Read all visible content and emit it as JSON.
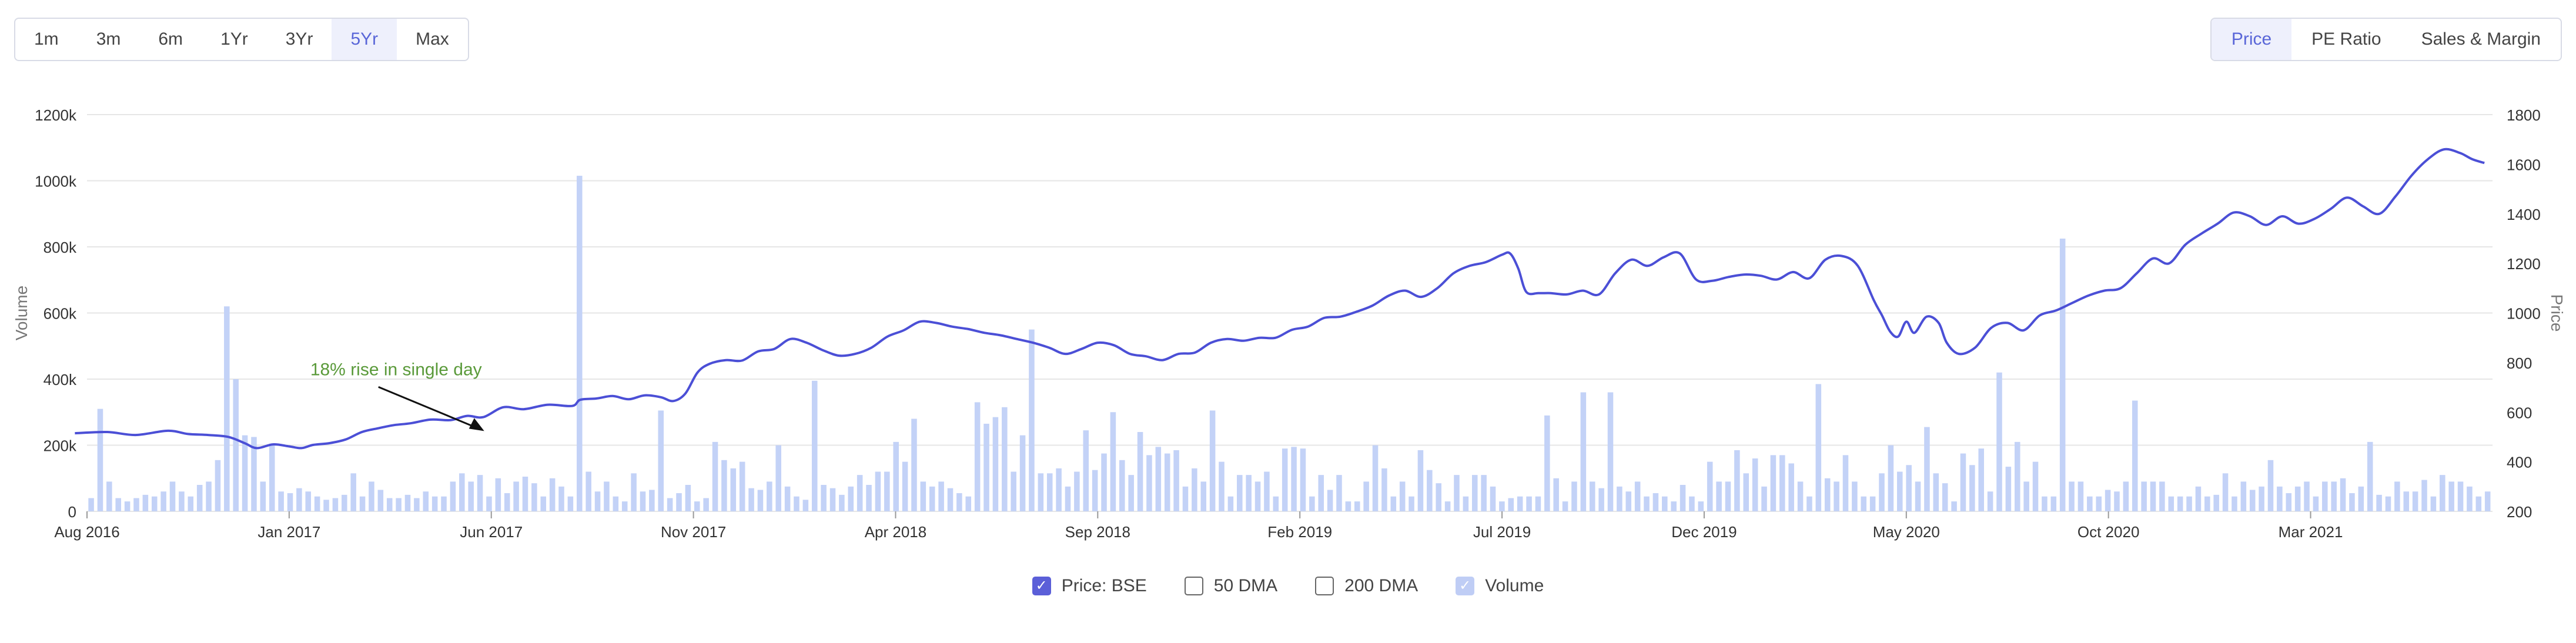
{
  "range_buttons": [
    {
      "label": "1m"
    },
    {
      "label": "3m"
    },
    {
      "label": "6m"
    },
    {
      "label": "1Yr"
    },
    {
      "label": "3Yr"
    },
    {
      "label": "5Yr"
    },
    {
      "label": "Max"
    }
  ],
  "range_active": "5Yr",
  "view_buttons": [
    {
      "label": "Price"
    },
    {
      "label": "PE Ratio"
    },
    {
      "label": "Sales & Margin"
    }
  ],
  "view_active": "Price",
  "legend": {
    "price": "Price: BSE",
    "dma50": "50 DMA",
    "dma200": "200 DMA",
    "volume": "Volume"
  },
  "colors": {
    "price_line": "#4b4fd6",
    "volume_bar": "#c3d2f7",
    "annotation": "#5a9a3a",
    "grid": "#e6e6e6"
  },
  "chart_data": {
    "type": "line",
    "ylabel_left": "Volume",
    "ylabel_right": "Price",
    "yleft_ticks": [
      "0",
      "200k",
      "400k",
      "600k",
      "800k",
      "1000k",
      "1200k"
    ],
    "yright_ticks": [
      "200",
      "400",
      "600",
      "800",
      "1000",
      "1200",
      "1400",
      "1600",
      "1800"
    ],
    "yleft_range": [
      0,
      1200000
    ],
    "yright_range": [
      200,
      1800
    ],
    "x_range": [
      0,
      59.5
    ],
    "x_ticks": [
      {
        "label": "Aug 2016",
        "x": 0
      },
      {
        "label": "Jan 2017",
        "x": 5
      },
      {
        "label": "Jun 2017",
        "x": 10
      },
      {
        "label": "Nov 2017",
        "x": 15
      },
      {
        "label": "Apr 2018",
        "x": 20
      },
      {
        "label": "Sep 2018",
        "x": 25
      },
      {
        "label": "Feb 2019",
        "x": 30
      },
      {
        "label": "Jul 2019",
        "x": 35
      },
      {
        "label": "Dec 2019",
        "x": 40
      },
      {
        "label": "May 2020",
        "x": 45
      },
      {
        "label": "Oct 2020",
        "x": 50
      },
      {
        "label": "Mar 2021",
        "x": 55
      }
    ],
    "annotation": {
      "text": "18% rise in single day",
      "x": 10,
      "y": 505
    },
    "price_series": {
      "name": "Price: BSE",
      "points": [
        [
          -0.3,
          515
        ],
        [
          0.5,
          520
        ],
        [
          1.2,
          508
        ],
        [
          2,
          525
        ],
        [
          2.5,
          512
        ],
        [
          3,
          508
        ],
        [
          3.5,
          500
        ],
        [
          3.9,
          475
        ],
        [
          4.2,
          455
        ],
        [
          4.6,
          470
        ],
        [
          5,
          462
        ],
        [
          5.3,
          455
        ],
        [
          5.6,
          468
        ],
        [
          6,
          475
        ],
        [
          6.4,
          490
        ],
        [
          6.8,
          520
        ],
        [
          7.2,
          535
        ],
        [
          7.6,
          548
        ],
        [
          8,
          555
        ],
        [
          8.5,
          570
        ],
        [
          9,
          568
        ],
        [
          9.4,
          585
        ],
        [
          9.8,
          580
        ],
        [
          10.3,
          620
        ],
        [
          10.8,
          612
        ],
        [
          11.4,
          630
        ],
        [
          12,
          625
        ],
        [
          12.2,
          650
        ],
        [
          12.6,
          655
        ],
        [
          13,
          665
        ],
        [
          13.4,
          652
        ],
        [
          13.8,
          668
        ],
        [
          14.2,
          660
        ],
        [
          14.5,
          645
        ],
        [
          14.8,
          675
        ],
        [
          15.1,
          760
        ],
        [
          15.4,
          795
        ],
        [
          15.8,
          810
        ],
        [
          16.2,
          808
        ],
        [
          16.6,
          845
        ],
        [
          17,
          855
        ],
        [
          17.4,
          895
        ],
        [
          17.8,
          880
        ],
        [
          18.2,
          850
        ],
        [
          18.6,
          828
        ],
        [
          19,
          835
        ],
        [
          19.4,
          860
        ],
        [
          19.8,
          905
        ],
        [
          20.2,
          930
        ],
        [
          20.6,
          965
        ],
        [
          21,
          960
        ],
        [
          21.4,
          945
        ],
        [
          21.8,
          935
        ],
        [
          22.2,
          920
        ],
        [
          22.6,
          910
        ],
        [
          23,
          895
        ],
        [
          23.4,
          880
        ],
        [
          23.8,
          860
        ],
        [
          24.2,
          835
        ],
        [
          24.6,
          855
        ],
        [
          25,
          880
        ],
        [
          25.4,
          870
        ],
        [
          25.8,
          835
        ],
        [
          26.2,
          825
        ],
        [
          26.6,
          810
        ],
        [
          27,
          835
        ],
        [
          27.4,
          840
        ],
        [
          27.8,
          880
        ],
        [
          28.2,
          895
        ],
        [
          28.6,
          888
        ],
        [
          29,
          900
        ],
        [
          29.4,
          900
        ],
        [
          29.8,
          932
        ],
        [
          30.2,
          945
        ],
        [
          30.6,
          980
        ],
        [
          31,
          985
        ],
        [
          31.4,
          1005
        ],
        [
          31.8,
          1030
        ],
        [
          32.2,
          1070
        ],
        [
          32.6,
          1090
        ],
        [
          33,
          1065
        ],
        [
          33.4,
          1100
        ],
        [
          33.8,
          1160
        ],
        [
          34.2,
          1190
        ],
        [
          34.6,
          1205
        ],
        [
          35,
          1235
        ],
        [
          35.2,
          1240
        ],
        [
          35.4,
          1180
        ],
        [
          35.6,
          1085
        ],
        [
          35.9,
          1080
        ],
        [
          36.2,
          1080
        ],
        [
          36.6,
          1075
        ],
        [
          37,
          1090
        ],
        [
          37.4,
          1075
        ],
        [
          37.8,
          1160
        ],
        [
          38.2,
          1215
        ],
        [
          38.6,
          1190
        ],
        [
          39,
          1225
        ],
        [
          39.4,
          1240
        ],
        [
          39.8,
          1135
        ],
        [
          40.2,
          1130
        ],
        [
          40.6,
          1145
        ],
        [
          41,
          1155
        ],
        [
          41.4,
          1150
        ],
        [
          41.8,
          1135
        ],
        [
          42.2,
          1165
        ],
        [
          42.6,
          1140
        ],
        [
          43,
          1215
        ],
        [
          43.4,
          1230
        ],
        [
          43.8,
          1190
        ],
        [
          44.2,
          1050
        ],
        [
          44.4,
          990
        ],
        [
          44.6,
          925
        ],
        [
          44.8,
          905
        ],
        [
          45,
          965
        ],
        [
          45.2,
          920
        ],
        [
          45.5,
          985
        ],
        [
          45.8,
          960
        ],
        [
          46,
          880
        ],
        [
          46.3,
          835
        ],
        [
          46.7,
          860
        ],
        [
          47.1,
          940
        ],
        [
          47.5,
          960
        ],
        [
          47.9,
          930
        ],
        [
          48.3,
          990
        ],
        [
          48.7,
          1010
        ],
        [
          49.1,
          1040
        ],
        [
          49.5,
          1070
        ],
        [
          49.9,
          1090
        ],
        [
          50.3,
          1100
        ],
        [
          50.7,
          1160
        ],
        [
          51.1,
          1220
        ],
        [
          51.5,
          1200
        ],
        [
          51.9,
          1275
        ],
        [
          52.3,
          1320
        ],
        [
          52.7,
          1360
        ],
        [
          53.1,
          1405
        ],
        [
          53.5,
          1390
        ],
        [
          53.9,
          1355
        ],
        [
          54.3,
          1390
        ],
        [
          54.7,
          1360
        ],
        [
          55.1,
          1380
        ],
        [
          55.5,
          1420
        ],
        [
          55.9,
          1465
        ],
        [
          56.3,
          1430
        ],
        [
          56.7,
          1400
        ],
        [
          57.1,
          1470
        ],
        [
          57.5,
          1555
        ],
        [
          57.9,
          1620
        ],
        [
          58.3,
          1660
        ],
        [
          58.7,
          1645
        ],
        [
          59,
          1620
        ],
        [
          59.3,
          1605
        ]
      ]
    },
    "volume_series": {
      "name": "Volume",
      "values": [
        40000,
        310000,
        90000,
        40000,
        30000,
        40000,
        50000,
        45000,
        60000,
        90000,
        60000,
        45000,
        80000,
        90000,
        155000,
        620000,
        400000,
        230000,
        225000,
        90000,
        205000,
        60000,
        55000,
        70000,
        60000,
        45000,
        35000,
        40000,
        50000,
        115000,
        45000,
        90000,
        65000,
        40000,
        40000,
        50000,
        40000,
        60000,
        45000,
        45000,
        90000,
        115000,
        90000,
        110000,
        45000,
        100000,
        55000,
        90000,
        105000,
        85000,
        45000,
        100000,
        75000,
        45000,
        1015000,
        120000,
        60000,
        90000,
        45000,
        30000,
        115000,
        60000,
        65000,
        305000,
        40000,
        55000,
        80000,
        30000,
        40000,
        210000,
        155000,
        130000,
        150000,
        70000,
        65000,
        90000,
        200000,
        75000,
        45000,
        35000,
        395000,
        80000,
        70000,
        50000,
        75000,
        110000,
        80000,
        120000,
        120000,
        210000,
        150000,
        280000,
        90000,
        75000,
        90000,
        70000,
        55000,
        45000,
        330000,
        265000,
        285000,
        315000,
        120000,
        230000,
        550000,
        115000,
        115000,
        130000,
        75000,
        120000,
        245000,
        125000,
        175000,
        300000,
        155000,
        110000,
        240000,
        170000,
        195000,
        175000,
        185000,
        75000,
        130000,
        90000,
        305000,
        150000,
        45000,
        110000,
        110000,
        90000,
        120000,
        45000,
        190000,
        195000,
        190000,
        45000,
        110000,
        65000,
        110000,
        30000,
        30000,
        90000,
        200000,
        130000,
        45000,
        90000,
        45000,
        185000,
        125000,
        85000,
        30000,
        110000,
        45000,
        110000,
        110000,
        75000,
        30000,
        40000,
        45000,
        45000,
        45000,
        290000,
        100000,
        30000,
        90000,
        360000,
        90000,
        70000,
        360000,
        75000,
        60000,
        90000,
        45000,
        55000,
        45000,
        30000,
        80000,
        45000,
        30000,
        150000,
        90000,
        90000,
        185000,
        115000,
        160000,
        75000,
        170000,
        170000,
        145000,
        90000,
        45000,
        385000,
        100000,
        90000,
        170000,
        90000,
        45000,
        45000,
        115000,
        200000,
        120000,
        140000,
        90000,
        255000,
        115000,
        85000,
        30000,
        175000,
        140000,
        190000,
        60000,
        420000,
        135000,
        210000,
        90000,
        150000,
        45000,
        45000,
        825000,
        90000,
        90000,
        45000,
        45000,
        65000,
        60000,
        90000,
        335000,
        90000,
        90000,
        90000,
        45000,
        45000,
        45000,
        75000,
        45000,
        50000,
        115000,
        45000,
        90000,
        65000,
        75000,
        155000,
        75000,
        55000,
        75000,
        90000,
        45000,
        90000,
        90000,
        100000,
        55000,
        75000,
        210000,
        50000,
        45000,
        90000,
        60000,
        60000,
        95000,
        45000,
        110000,
        90000,
        90000,
        75000,
        45000,
        60000
      ]
    }
  }
}
